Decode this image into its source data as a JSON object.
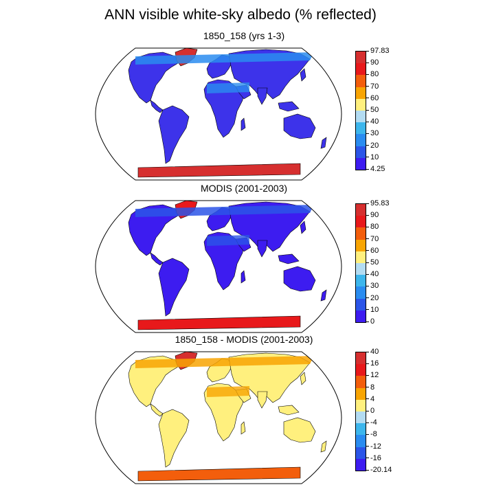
{
  "title": "ANN visible white-sky albedo (% reflected)",
  "panels": [
    {
      "title": "1850_158 (yrs 1-3)",
      "colors": [
        "#d62f2f",
        "#e8191b",
        "#f35e0c",
        "#f8a503",
        "#fff07e",
        "#b3dcf2",
        "#3db6ec",
        "#2a8cf0",
        "#2b55e8",
        "#3d1cf0"
      ],
      "labels": [
        "97.83",
        "90",
        "80",
        "70",
        "60",
        "50",
        "40",
        "30",
        "20",
        "10",
        "4.25"
      ],
      "land_color": "#3d33ea",
      "high_color": "#2a8cf0",
      "ice_color": "#d62f2f",
      "green_color": "#d62f2f"
    },
    {
      "title": "MODIS (2001-2003)",
      "colors": [
        "#d62f2f",
        "#e8191b",
        "#f35e0c",
        "#f8a503",
        "#fff07e",
        "#b3dcf2",
        "#3db6ec",
        "#2a8cf0",
        "#2b55e8",
        "#3d1cf0"
      ],
      "labels": [
        "95.83",
        "90",
        "80",
        "70",
        "60",
        "50",
        "40",
        "30",
        "20",
        "10",
        "0"
      ],
      "land_color": "#3d1cf0",
      "high_color": "#2b55e8",
      "ice_color": "#e8191b",
      "green_color": "#e8191b"
    },
    {
      "title": "1850_158 - MODIS (2001-2003)",
      "colors": [
        "#d62f2f",
        "#e8191b",
        "#f35e0c",
        "#f8a503",
        "#fff07e",
        "#b3dcf2",
        "#3db6ec",
        "#2a8cf0",
        "#2b55e8",
        "#3d1cf0"
      ],
      "labels": [
        "40",
        "16",
        "12",
        "8",
        "4",
        "0",
        "-4",
        "-8",
        "-12",
        "-16",
        "-20.14"
      ],
      "land_color": "#fff07e",
      "high_color": "#f8a503",
      "ice_color": "#f35e0c",
      "green_color": "#d62f2f"
    }
  ]
}
